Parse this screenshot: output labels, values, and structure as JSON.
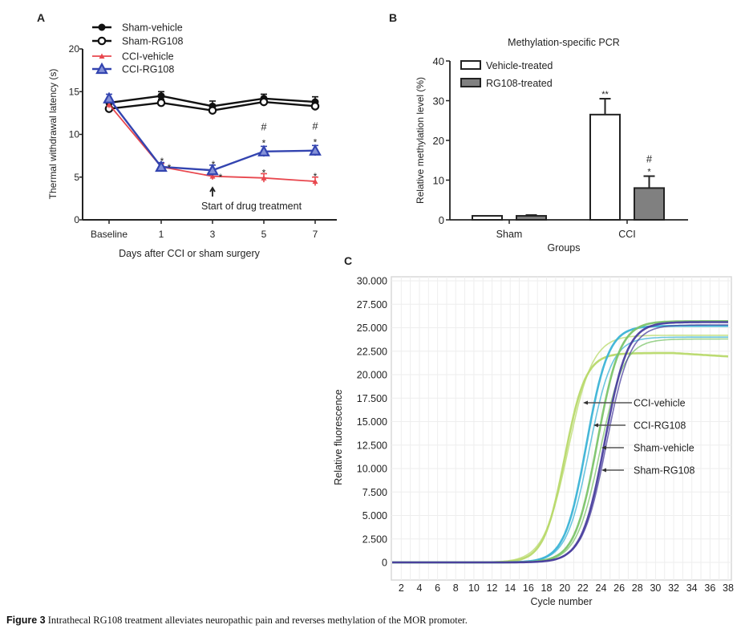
{
  "chart_data": [
    {
      "panel": "A",
      "type": "line",
      "title": "",
      "xlabel": "Days after CCI or sham surgery",
      "ylabel": "Thermal withdrawal latency (s)",
      "categories": [
        "Baseline",
        "1",
        "3",
        "5",
        "7"
      ],
      "ylim": [
        0,
        20
      ],
      "yticks": [
        0,
        5,
        10,
        15,
        20
      ],
      "legend_position": "top-left",
      "series": [
        {
          "name": "Sham-vehicle",
          "color": "#111111",
          "marker": "filled-circle",
          "values": [
            13.7,
            14.5,
            13.3,
            14.2,
            13.8
          ],
          "errors": [
            0.4,
            0.5,
            0.6,
            0.5,
            0.6
          ]
        },
        {
          "name": "Sham-RG108",
          "color": "#111111",
          "marker": "open-circle",
          "values": [
            13.0,
            13.7,
            12.8,
            13.8,
            13.3
          ],
          "errors": [
            0.3,
            0.4,
            0.4,
            0.4,
            0.5
          ]
        },
        {
          "name": "CCI-vehicle",
          "color": "#e8474e",
          "marker": "small-triangle",
          "values": [
            13.5,
            6.2,
            5.1,
            4.9,
            4.5
          ],
          "errors": [
            0.4,
            0.4,
            0.4,
            0.5,
            0.5
          ]
        },
        {
          "name": "CCI-RG108",
          "color": "#3344b0",
          "marker": "triangle",
          "values": [
            14.2,
            6.2,
            5.8,
            8.0,
            8.1
          ],
          "errors": [
            0.5,
            0.5,
            0.6,
            0.6,
            0.6
          ]
        }
      ],
      "annotations": [
        {
          "text": "*",
          "near": "CCI-RG108",
          "x": "1"
        },
        {
          "text": "*",
          "near": "CCI-vehicle",
          "x": "1"
        },
        {
          "text": "*",
          "near": "CCI-RG108",
          "x": "3"
        },
        {
          "text": "*",
          "near": "CCI-vehicle",
          "x": "3"
        },
        {
          "text": "#",
          "near": "CCI-RG108",
          "x": "5"
        },
        {
          "text": "*",
          "near": "CCI-RG108",
          "x": "5"
        },
        {
          "text": "*",
          "near": "CCI-vehicle",
          "x": "5"
        },
        {
          "text": "#",
          "near": "CCI-RG108",
          "x": "7"
        },
        {
          "text": "*",
          "near": "CCI-RG108",
          "x": "7"
        },
        {
          "text": "*",
          "near": "CCI-vehicle",
          "x": "7"
        },
        {
          "text": "Start of drug treatment",
          "arrow": "up",
          "x": "3"
        }
      ]
    },
    {
      "panel": "B",
      "type": "bar",
      "title": "Methylation-specific PCR",
      "xlabel": "Groups",
      "ylabel": "Relative methylation level (%)",
      "categories": [
        "Sham",
        "CCI"
      ],
      "ylim": [
        0,
        40
      ],
      "yticks": [
        0,
        10,
        20,
        30,
        40
      ],
      "legend_position": "top-left",
      "series": [
        {
          "name": "Vehicle-treated",
          "color": "#ffffff",
          "values": [
            1.0,
            26.5
          ],
          "errors": [
            0,
            4.0
          ],
          "labels": [
            "",
            "**"
          ]
        },
        {
          "name": "RG108-treated",
          "color": "#808080",
          "values": [
            1.0,
            8.0
          ],
          "errors": [
            0.2,
            3.0
          ],
          "labels": [
            "",
            "#\n*"
          ]
        }
      ]
    },
    {
      "panel": "C",
      "type": "line",
      "title": "",
      "xlabel": "Cycle number",
      "ylabel": "Relative fluorescence",
      "xlim": [
        1,
        38
      ],
      "ylim": [
        -2000,
        30500
      ],
      "xticks": [
        2,
        4,
        6,
        8,
        10,
        12,
        14,
        16,
        18,
        20,
        22,
        24,
        26,
        28,
        30,
        32,
        34,
        36,
        38
      ],
      "yticks": [
        0,
        2500,
        5000,
        7500,
        10000,
        12500,
        15000,
        17500,
        20000,
        22500,
        25000,
        27500,
        30000
      ],
      "ytick_labels": [
        "0",
        "2.500",
        "5.000",
        "7.500",
        "10.000",
        "12.500",
        "15.000",
        "17.500",
        "20.000",
        "22.500",
        "25.000",
        "27.500",
        "30.000"
      ],
      "grid": true,
      "series": [
        {
          "name": "CCI-vehicle",
          "color": "#b8d96a",
          "curves": [
            {
              "ct": 20.0,
              "plateau": 22300,
              "slope": 1.15
            },
            {
              "ct": 20.4,
              "plateau": 24200,
              "slope": 1.35
            }
          ]
        },
        {
          "name": "CCI-RG108",
          "color": "#3bb3d6",
          "curves": [
            {
              "ct": 22.4,
              "plateau": 25200,
              "slope": 1.2
            },
            {
              "ct": 22.7,
              "plateau": 24000,
              "slope": 1.25
            }
          ]
        },
        {
          "name": "Sham-vehicle",
          "color": "#7cc46a",
          "curves": [
            {
              "ct": 23.6,
              "plateau": 25700,
              "slope": 1.25
            },
            {
              "ct": 23.9,
              "plateau": 23800,
              "slope": 1.3
            }
          ]
        },
        {
          "name": "Sham-RG108",
          "color": "#4a3f9e",
          "curves": [
            {
              "ct": 24.4,
              "plateau": 25600,
              "slope": 1.25
            },
            {
              "ct": 24.6,
              "plateau": 25300,
              "slope": 1.3
            }
          ]
        }
      ],
      "annotations": [
        {
          "text": "CCI-vehicle",
          "target": "CCI-vehicle"
        },
        {
          "text": "CCI-RG108",
          "target": "CCI-RG108"
        },
        {
          "text": "Sham-vehicle",
          "target": "Sham-vehicle"
        },
        {
          "text": "Sham-RG108",
          "target": "Sham-RG108"
        }
      ]
    }
  ],
  "panel_labels": [
    "A",
    "B",
    "C"
  ],
  "caption": {
    "label": "Figure 3",
    "text": " Intrathecal RG108 treatment alleviates neuropathic pain and reverses methylation of the MOR promoter."
  }
}
